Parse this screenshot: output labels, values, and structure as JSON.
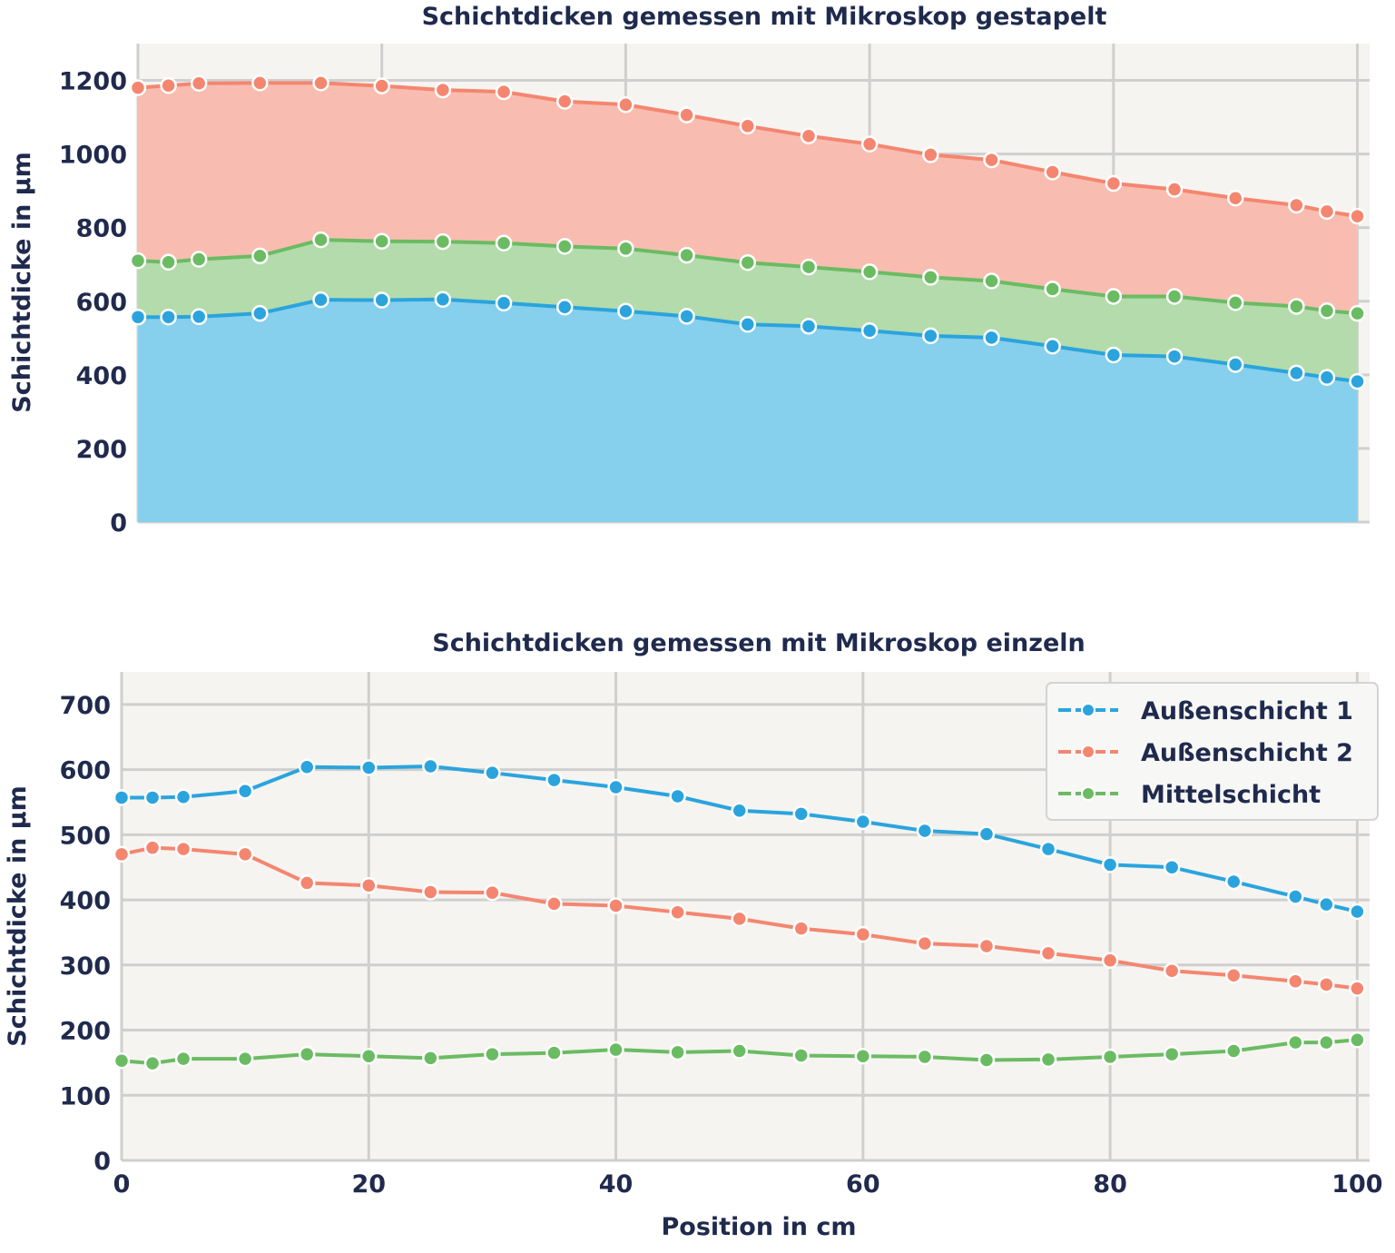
{
  "colors": {
    "outer1": "#2ba4dd",
    "outer2": "#f48670",
    "middle": "#6bbb63",
    "outer1_fill": "#86cfed",
    "outer2_fill": "#f8bdb0",
    "middle_fill": "#b3dbab",
    "plot_bg": "#f5f4f1",
    "grid": "#cfcfcf"
  },
  "chart_data": [
    {
      "type": "area",
      "stacked": true,
      "title": "Schichtdicken gemessen mit Mikroskop gestapelt",
      "xlabel": "",
      "ylabel": "Schichtdicke in µm",
      "xlim": [
        0,
        101
      ],
      "ylim": [
        0,
        1300
      ],
      "xticks": [
        20,
        40,
        60,
        80,
        100
      ],
      "xtick_labels_shown": false,
      "yticks": [
        0,
        200,
        400,
        600,
        800,
        1000,
        1200
      ],
      "ytick_labels": [
        "0",
        "200",
        "400",
        "600",
        "800",
        "1000",
        "1200"
      ],
      "grid": true,
      "x": [
        0,
        2.5,
        5,
        10,
        15,
        20,
        25,
        30,
        35,
        40,
        45,
        50,
        55,
        60,
        65,
        70,
        75,
        80,
        85,
        90,
        95,
        97.5,
        100
      ],
      "series": [
        {
          "key": "outer1",
          "values": [
            557,
            557,
            558,
            567,
            604,
            603,
            605,
            595,
            584,
            573,
            559,
            537,
            532,
            520,
            506,
            501,
            478,
            454,
            450,
            428,
            405,
            393,
            382
          ]
        },
        {
          "key": "middle",
          "values": [
            153,
            149,
            156,
            156,
            163,
            160,
            157,
            163,
            165,
            170,
            166,
            168,
            161,
            160,
            159,
            154,
            155,
            159,
            163,
            168,
            181,
            181,
            185
          ]
        },
        {
          "key": "outer2",
          "values": [
            470,
            480,
            478,
            470,
            426,
            422,
            412,
            411,
            394,
            391,
            381,
            371,
            356,
            347,
            333,
            329,
            318,
            307,
            291,
            284,
            275,
            270,
            264
          ]
        }
      ]
    },
    {
      "type": "line",
      "title": "Schichtdicken gemessen mit Mikroskop einzeln",
      "xlabel": "Position in cm",
      "ylabel": "Schichtdicke in µm",
      "xlim": [
        0,
        101
      ],
      "ylim": [
        0,
        750
      ],
      "xticks": [
        0,
        20,
        40,
        60,
        80,
        100
      ],
      "xtick_labels": [
        "0",
        "20",
        "40",
        "60",
        "80",
        "100"
      ],
      "yticks": [
        0,
        100,
        200,
        300,
        400,
        500,
        600,
        700
      ],
      "ytick_labels": [
        "0",
        "100",
        "200",
        "300",
        "400",
        "500",
        "600",
        "700"
      ],
      "grid": true,
      "legend_position": "top-right",
      "x": [
        0,
        2.5,
        5,
        10,
        15,
        20,
        25,
        30,
        35,
        40,
        45,
        50,
        55,
        60,
        65,
        70,
        75,
        80,
        85,
        90,
        95,
        97.5,
        100
      ],
      "series": [
        {
          "key": "outer1",
          "name": "Außenschicht 1",
          "values": [
            557,
            557,
            558,
            567,
            604,
            603,
            605,
            595,
            584,
            573,
            559,
            537,
            532,
            520,
            506,
            501,
            478,
            454,
            450,
            428,
            405,
            393,
            382
          ]
        },
        {
          "key": "outer2",
          "name": "Außenschicht 2",
          "values": [
            470,
            480,
            478,
            470,
            426,
            422,
            412,
            411,
            394,
            391,
            381,
            371,
            356,
            347,
            333,
            329,
            318,
            307,
            291,
            284,
            275,
            270,
            264
          ]
        },
        {
          "key": "middle",
          "name": "Mittelschicht",
          "values": [
            153,
            149,
            156,
            156,
            163,
            160,
            157,
            163,
            165,
            170,
            166,
            168,
            161,
            160,
            159,
            154,
            155,
            159,
            163,
            168,
            181,
            181,
            185
          ]
        }
      ]
    }
  ]
}
